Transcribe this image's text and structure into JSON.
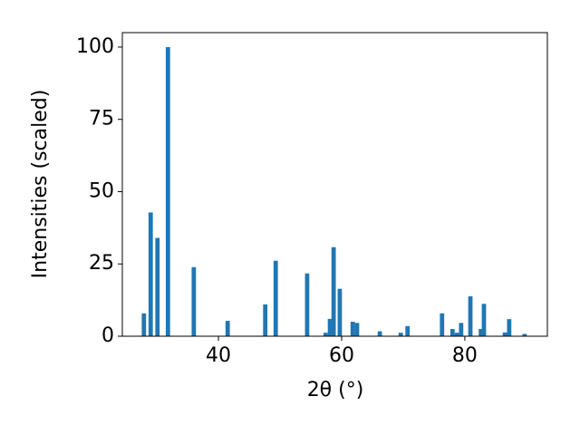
{
  "chart_data": {
    "type": "bar",
    "xlabel": "2θ (°)",
    "ylabel": "Intensities (scaled)",
    "x": [
      27.9,
      29.0,
      30.1,
      31.8,
      36.0,
      41.5,
      47.6,
      49.3,
      54.4,
      57.4,
      58.1,
      58.7,
      59.7,
      61.8,
      62.5,
      66.2,
      69.6,
      70.7,
      76.3,
      78.0,
      78.7,
      79.4,
      80.9,
      82.6,
      83.1,
      86.5,
      87.2,
      89.7
    ],
    "values": [
      7.9,
      42.8,
      34,
      100,
      23.9,
      5.3,
      11,
      26.1,
      21.7,
      1.2,
      6,
      30.8,
      16.4,
      5,
      4.6,
      1.7,
      1.2,
      3.5,
      7.9,
      2.5,
      1.2,
      4.6,
      13.8,
      2.5,
      11.2,
      1.3,
      5.9,
      0.8
    ],
    "color": "#1f77b4",
    "bar_width": 0.7,
    "xlim": [
      24.4,
      93.4
    ],
    "xticks": [
      40,
      60,
      80
    ],
    "ylim": [
      0,
      105
    ],
    "yticks": [
      0,
      25,
      50,
      75,
      100
    ]
  }
}
